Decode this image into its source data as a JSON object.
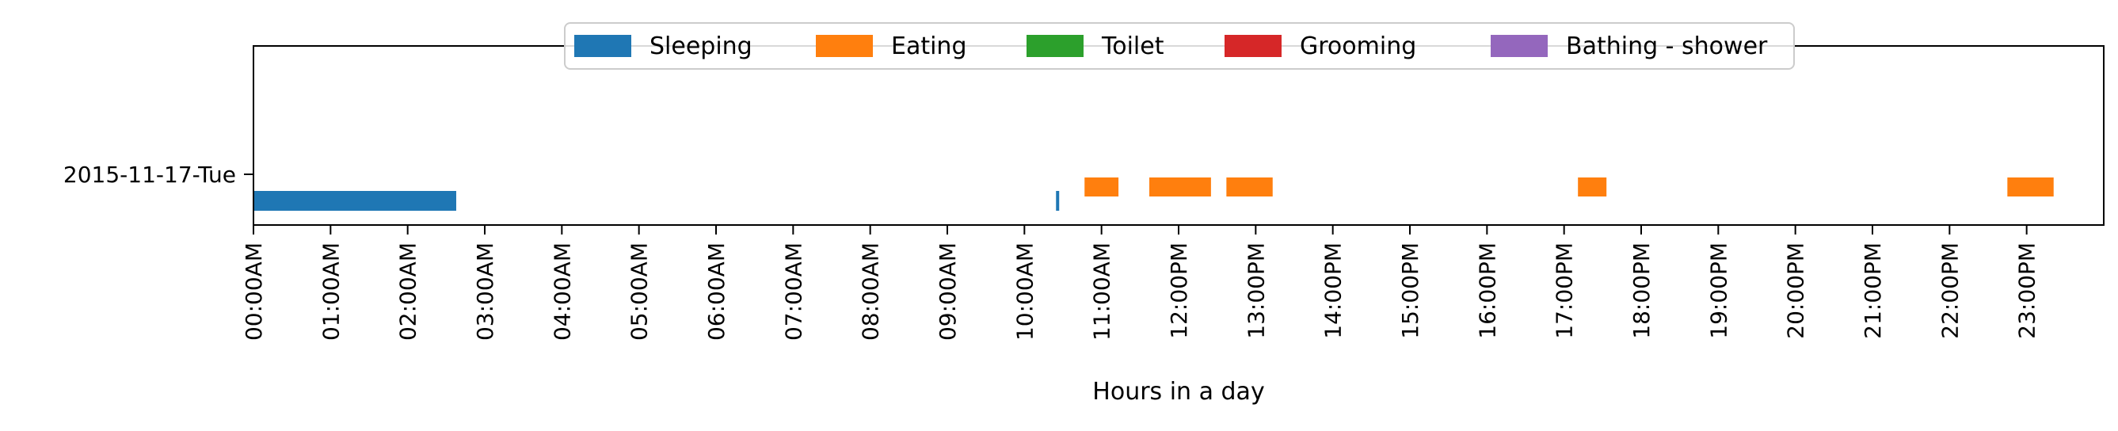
{
  "chart_data": {
    "type": "bar",
    "orientation": "horizontal-timeline",
    "title": "",
    "xlabel": "Hours in a day",
    "ylabel": "",
    "xlim": [
      0,
      24
    ],
    "x_tick_values": [
      0,
      1,
      2,
      3,
      4,
      5,
      6,
      7,
      8,
      9,
      10,
      11,
      12,
      13,
      14,
      15,
      16,
      17,
      18,
      19,
      20,
      21,
      22,
      23
    ],
    "x_tick_labels": [
      "00:00AM",
      "01:00AM",
      "02:00AM",
      "03:00AM",
      "04:00AM",
      "05:00AM",
      "06:00AM",
      "07:00AM",
      "08:00AM",
      "09:00AM",
      "10:00AM",
      "11:00AM",
      "12:00PM",
      "13:00PM",
      "14:00PM",
      "15:00PM",
      "16:00PM",
      "17:00PM",
      "18:00PM",
      "19:00PM",
      "20:00PM",
      "21:00PM",
      "22:00PM",
      "23:00PM"
    ],
    "categories": [
      "2015-11-17-Tue"
    ],
    "grid": false,
    "legend_position": "top-center",
    "series": [
      {
        "name": "Sleeping",
        "color": "#1f77b4",
        "lane": "lower",
        "intervals": [
          [
            0.0,
            2.63
          ],
          [
            10.41,
            10.45
          ]
        ]
      },
      {
        "name": "Eating",
        "color": "#ff7f0e",
        "lane": "upper",
        "intervals": [
          [
            10.78,
            11.22
          ],
          [
            11.62,
            12.42
          ],
          [
            12.62,
            13.22
          ],
          [
            17.18,
            17.55
          ],
          [
            22.75,
            23.35
          ]
        ]
      },
      {
        "name": "Toilet",
        "color": "#2ca02c",
        "lane": "upper",
        "intervals": []
      },
      {
        "name": "Grooming",
        "color": "#d62728",
        "lane": "upper",
        "intervals": []
      },
      {
        "name": "Bathing - shower",
        "color": "#9467bd",
        "lane": "upper",
        "intervals": []
      }
    ]
  }
}
